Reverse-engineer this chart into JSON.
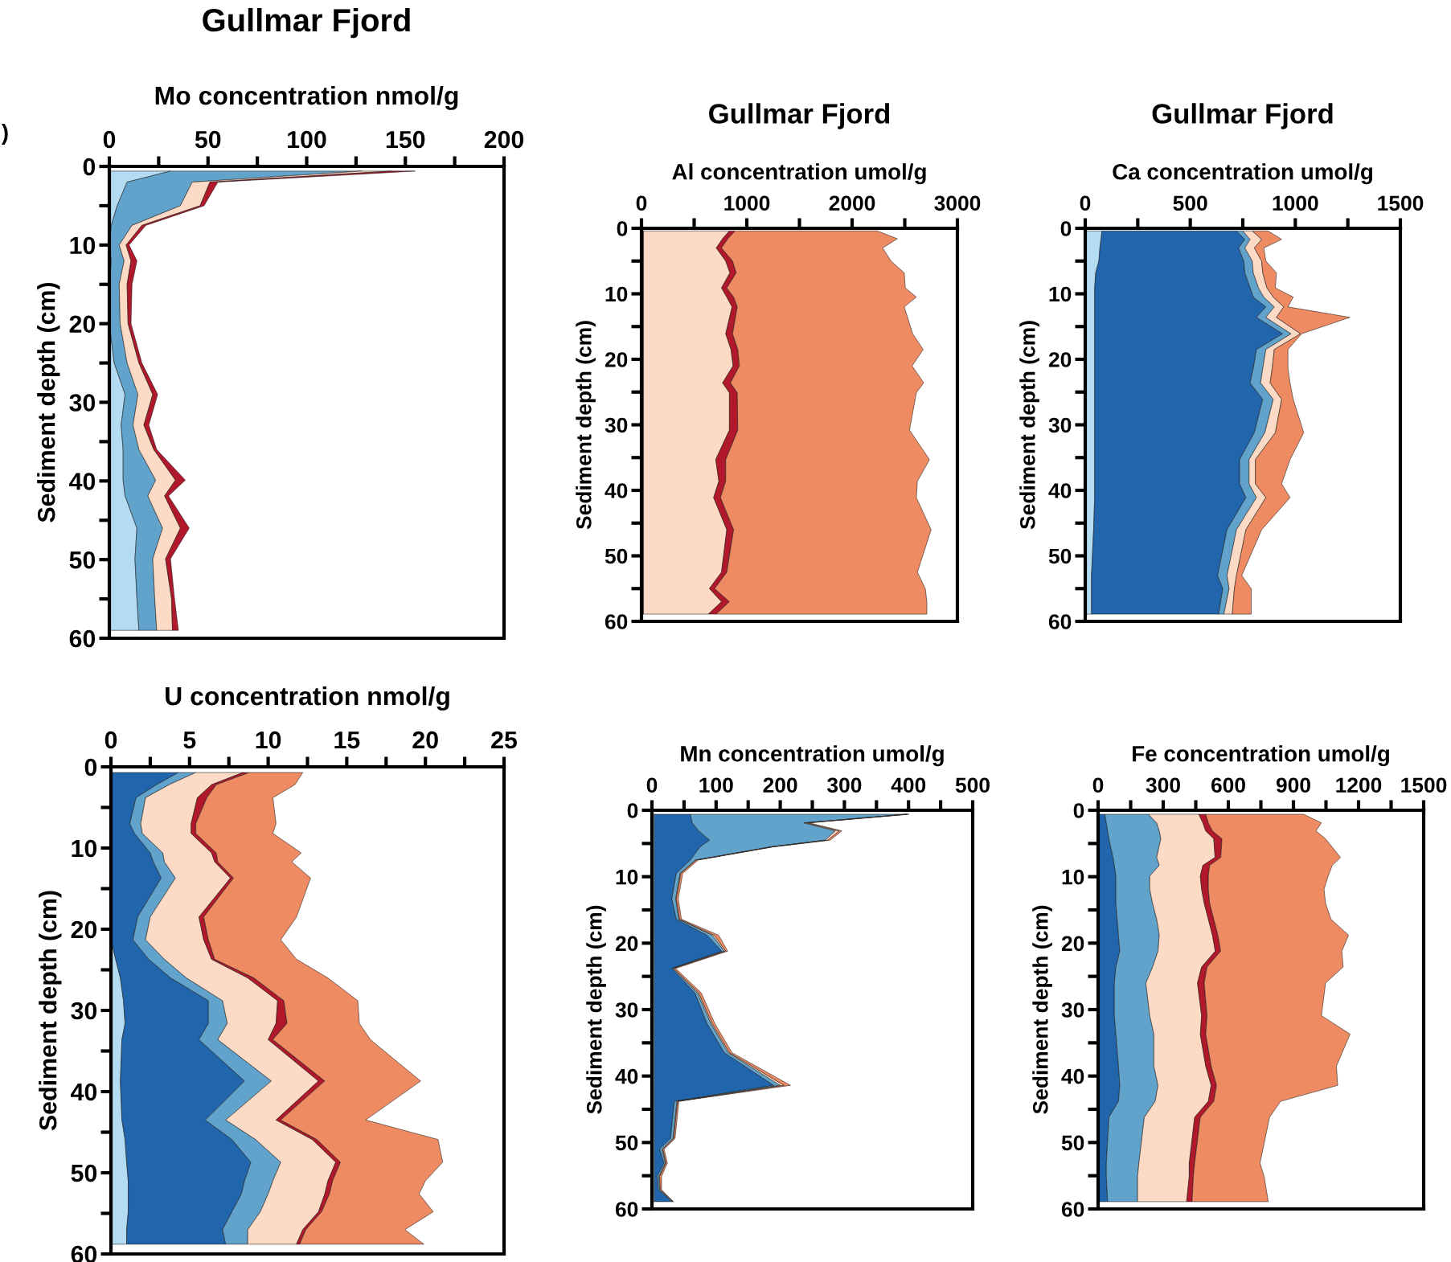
{
  "chart_data": [
    {
      "type": "area",
      "stacked": true,
      "orientation": "horizontal",
      "title": "Gullmar Fjord",
      "xlabel": "Mo concentration nmol/g",
      "ylabel": "Sediment depth (cm)",
      "annotations": [
        ")"
      ],
      "x": [
        0.6,
        2.0,
        5.0,
        7.5,
        10.0,
        12.0,
        15.0,
        20.0,
        25.0,
        29.0,
        32.9,
        36.0,
        39.9,
        41.9,
        46.0,
        49.9,
        54.9,
        59.0
      ],
      "series": [
        {
          "color": "#b3dbf1",
          "values": [
            31,
            9,
            4,
            1,
            0,
            1,
            0,
            0,
            2.5,
            8,
            6,
            7,
            7,
            8,
            14,
            13,
            14,
            15
          ]
        },
        {
          "color": "#62a3cb",
          "values": [
            97,
            33,
            32,
            10.5,
            5,
            6.5,
            5,
            5.5,
            6.5,
            6.5,
            6,
            8,
            16.5,
            11.5,
            13,
            9,
            9,
            9
          ]
        },
        {
          "color": "#fddac6",
          "values": [
            15,
            9,
            10,
            5,
            3.5,
            3.5,
            4,
            4,
            6,
            7.5,
            5.5,
            7.5,
            10,
            8.5,
            9,
            6.5,
            8.5,
            8
          ]
        },
        {
          "color": "#b2182b",
          "values": [
            12,
            4,
            2,
            2,
            1.5,
            3,
            2.5,
            1.5,
            1.5,
            2.5,
            2.5,
            1.5,
            5,
            2,
            4.5,
            2.5,
            1.5,
            3
          ]
        }
      ],
      "xlim": [
        0,
        200
      ],
      "xticks": [
        0,
        {
          "value": 25,
          "label": null
        },
        50,
        {
          "value": 75,
          "label": null
        },
        100,
        {
          "value": 125,
          "label": null
        },
        150,
        {
          "value": 175,
          "label": null
        },
        200
      ],
      "ylim": [
        60,
        0
      ],
      "yticks": [
        0,
        {
          "value": 5,
          "label": null
        },
        10,
        {
          "value": 15,
          "label": null
        },
        20,
        {
          "value": 25,
          "label": null
        },
        30,
        {
          "value": 35,
          "label": null
        },
        40,
        {
          "value": 45,
          "label": null
        },
        50,
        {
          "value": 55,
          "label": null
        },
        60
      ]
    },
    {
      "type": "area",
      "stacked": true,
      "orientation": "horizontal",
      "title": "Gullmar Fjord",
      "xlabel": "Al concentration umol/g",
      "ylabel": "Sediment depth (cm)",
      "x": [
        0.4,
        1.6,
        3.0,
        5.0,
        6.8,
        9.1,
        10.5,
        12.0,
        16.1,
        18.5,
        21.0,
        23.6,
        25.1,
        30.8,
        35.3,
        38.6,
        41.1,
        46.0,
        52.5,
        55.0,
        57.0,
        58.9
      ],
      "series": [
        {
          "color": "#62a3cb",
          "values": [
            20,
            20,
            20,
            20,
            20,
            20,
            20,
            20,
            20,
            20,
            20,
            20,
            20,
            20,
            20,
            20,
            20,
            20,
            20,
            20,
            20,
            20
          ]
        },
        {
          "color": "#fddac6",
          "values": [
            815,
            750,
            690,
            780,
            820,
            740,
            790,
            840,
            780,
            830,
            850,
            750,
            815,
            815,
            685,
            715,
            665,
            790,
            740,
            625,
            740,
            615
          ]
        },
        {
          "color": "#b2182b",
          "values": [
            55,
            50,
            50,
            65,
            60,
            50,
            65,
            50,
            65,
            65,
            60,
            75,
            75,
            80,
            95,
            65,
            65,
            65,
            50,
            50,
            75,
            75
          ]
        },
        {
          "color": "#ef8b62",
          "values": [
            1350,
            1610,
            1530,
            1505,
            1595,
            1695,
            1735,
            1585,
            1710,
            1760,
            1640,
            1835,
            1700,
            1630,
            1935,
            1820,
            1860,
            1875,
            1810,
            2000,
            1875,
            2000
          ]
        }
      ],
      "xlim": [
        0,
        3000
      ],
      "xticks": [
        0,
        {
          "value": 500,
          "label": null
        },
        1000,
        {
          "value": 1500,
          "label": null
        },
        2000,
        {
          "value": 2500,
          "label": null
        },
        3000
      ],
      "ylim": [
        60,
        0
      ],
      "yticks": [
        0,
        {
          "value": 5,
          "label": null
        },
        10,
        {
          "value": 15,
          "label": null
        },
        20,
        {
          "value": 25,
          "label": null
        },
        30,
        {
          "value": 35,
          "label": null
        },
        40,
        {
          "value": 45,
          "label": null
        },
        50,
        {
          "value": 55,
          "label": null
        },
        60
      ]
    },
    {
      "type": "area",
      "stacked": true,
      "orientation": "horizontal",
      "title": "Gullmar Fjord",
      "xlabel": "Ca concentration umol/g",
      "ylabel": "Sediment depth (cm)",
      "x": [
        0.4,
        1.7,
        3.0,
        5.0,
        6.8,
        9.1,
        10.5,
        12.0,
        13.6,
        16.1,
        18.5,
        21.4,
        23.6,
        26.1,
        31.2,
        35.3,
        39.0,
        41.1,
        46.0,
        53.0,
        55.0,
        58.9
      ],
      "series": [
        {
          "color": "#b3dbf1",
          "values": [
            80,
            75,
            70,
            65,
            50,
            45,
            45,
            45,
            45,
            45,
            45,
            45,
            45,
            45,
            45,
            45,
            45,
            45,
            40,
            30,
            30,
            30
          ]
        },
        {
          "color": "#2166ac",
          "values": [
            640,
            685,
            660,
            690,
            710,
            740,
            755,
            815,
            770,
            895,
            770,
            755,
            740,
            800,
            760,
            690,
            690,
            720,
            635,
            600,
            625,
            605
          ]
        },
        {
          "color": "#62a3cb",
          "values": [
            30,
            25,
            30,
            40,
            40,
            40,
            50,
            40,
            45,
            40,
            45,
            45,
            50,
            50,
            50,
            45,
            45,
            50,
            45,
            45,
            30,
            25
          ]
        },
        {
          "color": "#fddac6",
          "values": [
            45,
            55,
            45,
            45,
            45,
            40,
            45,
            45,
            50,
            45,
            40,
            45,
            45,
            40,
            50,
            30,
            30,
            45,
            45,
            45,
            25,
            40
          ]
        },
        {
          "color": "#ef8b62",
          "values": [
            75,
            95,
            45,
            20,
            65,
            40,
            95,
            20,
            350,
            5,
            65,
            75,
            95,
            55,
            135,
            165,
            125,
            115,
            75,
            25,
            80,
            90
          ]
        }
      ],
      "xlim": [
        0,
        1500
      ],
      "xticks": [
        0,
        {
          "value": 250,
          "label": null
        },
        500,
        {
          "value": 750,
          "label": null
        },
        1000,
        {
          "value": 1250,
          "label": null
        },
        1500
      ],
      "ylim": [
        60,
        0
      ],
      "yticks": [
        0,
        {
          "value": 5,
          "label": null
        },
        10,
        {
          "value": 15,
          "label": null
        },
        20,
        {
          "value": 25,
          "label": null
        },
        30,
        {
          "value": 35,
          "label": null
        },
        40,
        {
          "value": 45,
          "label": null
        },
        50,
        {
          "value": 55,
          "label": null
        },
        60
      ]
    },
    {
      "type": "area",
      "stacked": true,
      "orientation": "horizontal",
      "xlabel": "U concentration nmol/g",
      "ylabel": "Sediment depth (cm)",
      "x": [
        0.7,
        2.2,
        3.8,
        7.0,
        8.2,
        10.6,
        11.7,
        13.7,
        18.5,
        21.3,
        23.7,
        26.0,
        28.8,
        31.6,
        33.6,
        38.7,
        43.5,
        45.9,
        48.7,
        51.0,
        52.6,
        54.8,
        57.0,
        58.8
      ],
      "series": [
        {
          "color": "#b3dbf1",
          "values": [
            0.1,
            0,
            0,
            0,
            0,
            0,
            0,
            0,
            0,
            0,
            0.3,
            0.6,
            0.8,
            0.9,
            0.7,
            0.6,
            0.7,
            0.9,
            1.0,
            1.1,
            1.1,
            1.1,
            1.0,
            1.0
          ]
        },
        {
          "color": "#2166ac",
          "values": [
            4.2,
            2.9,
            1.6,
            1.2,
            1.5,
            2.5,
            2.7,
            3.2,
            1.7,
            1.4,
            2.1,
            3.2,
            5.4,
            5.3,
            4.9,
            7.9,
            5.3,
            6.8,
            7.9,
            7.4,
            7.2,
            6.6,
            6.1,
            6.3
          ]
        },
        {
          "color": "#62a3cb",
          "values": [
            1.1,
            0.8,
            0.6,
            0.7,
            0.5,
            0.8,
            0.7,
            0.9,
            0.8,
            0.8,
            1.0,
            1.0,
            0.9,
            1.2,
            1.2,
            1.7,
            1.3,
            1.5,
            1.9,
            1.8,
            1.7,
            1.8,
            1.6,
            1.4
          ]
        },
        {
          "color": "#fddac6",
          "values": [
            3.0,
            2.7,
            3.3,
            3.2,
            3.1,
            3.1,
            3.2,
            3.5,
            3.1,
            3.7,
            3.0,
            3.9,
            3.5,
            3.1,
            3.2,
            3.0,
            3.2,
            3.6,
            3.5,
            3.5,
            3.6,
            3.7,
            3.5,
            3.1
          ]
        },
        {
          "color": "#b2182b",
          "values": [
            0.4,
            0.3,
            0.6,
            0.3,
            0.3,
            0.3,
            0.2,
            0.2,
            0.3,
            0.3,
            0.2,
            0.4,
            0.4,
            0.7,
            0.3,
            0.4,
            0.3,
            0.3,
            0.3,
            0.3,
            0.3,
            0.2,
            0.2,
            0.2
          ]
        },
        {
          "color": "#ef8b62",
          "values": [
            3.4,
            5.0,
            4.2,
            5.1,
            4.9,
            5.4,
            4.7,
            4.9,
            5.9,
            4.6,
            5.2,
            4.7,
            4.7,
            4.6,
            6.2,
            6.1,
            5.4,
            7.7,
            6.5,
            5.9,
            5.7,
            7.1,
            6.3,
            7.9
          ]
        }
      ],
      "xlim": [
        0,
        25
      ],
      "xticks": [
        0,
        {
          "value": 2.5,
          "label": null
        },
        5,
        {
          "value": 7.5,
          "label": null
        },
        10,
        {
          "value": 12.5,
          "label": null
        },
        15,
        {
          "value": 17.5,
          "label": null
        },
        20,
        {
          "value": 22.5,
          "label": null
        },
        25
      ],
      "ylim": [
        60,
        0
      ],
      "yticks": [
        0,
        {
          "value": 5,
          "label": null
        },
        10,
        {
          "value": 15,
          "label": null
        },
        20,
        {
          "value": 25,
          "label": null
        },
        30,
        {
          "value": 35,
          "label": null
        },
        40,
        {
          "value": 45,
          "label": null
        },
        50,
        {
          "value": 55,
          "label": null
        },
        60
      ]
    },
    {
      "type": "area",
      "stacked": true,
      "orientation": "horizontal",
      "xlabel": "Mn concentration umol/g",
      "ylabel": "Sediment depth (cm)",
      "x": [
        0.6,
        1.9,
        3.1,
        4.5,
        5.5,
        7.5,
        9.5,
        13.3,
        16.4,
        18.8,
        21.2,
        23.8,
        27.5,
        32.1,
        36.5,
        41.4,
        43.8,
        49.4,
        51.0,
        53.1,
        55.1,
        57.1,
        58.9
      ],
      "series": [
        {
          "color": "#b3dbf1",
          "values": [
            4,
            4,
            4,
            4,
            4,
            4,
            4,
            4,
            4,
            4,
            4,
            4,
            4,
            4,
            4,
            4,
            4,
            4,
            4,
            4,
            4,
            4,
            4
          ]
        },
        {
          "color": "#2166ac",
          "values": [
            56,
            59,
            69,
            86,
            71,
            56,
            34,
            27,
            34,
            82,
            105,
            27,
            63,
            82,
            109,
            186,
            31,
            25,
            8,
            15,
            4,
            6,
            27
          ]
        },
        {
          "color": "#62a3cb",
          "values": [
            337,
            174,
            213,
            180,
            111,
            8,
            6,
            6,
            4,
            8,
            4,
            2,
            4,
            6,
            6,
            10,
            4,
            4,
            4,
            2,
            3,
            2,
            2
          ]
        },
        {
          "color": "#fddac6",
          "values": [
            1,
            4,
            6,
            4,
            2,
            1,
            1,
            1,
            1,
            3,
            2,
            1,
            2,
            2,
            2,
            6,
            1,
            1,
            1,
            1,
            1,
            1,
            0
          ]
        },
        {
          "color": "#ef8b62",
          "values": [
            3,
            4,
            4,
            4,
            2,
            3,
            3,
            3,
            3,
            7,
            3,
            3,
            4,
            4,
            4,
            10,
            2,
            2,
            2,
            2,
            3,
            2,
            0
          ]
        }
      ],
      "xlim": [
        0,
        500
      ],
      "xticks": [
        0,
        {
          "value": 50,
          "label": null
        },
        100,
        {
          "value": 150,
          "label": null
        },
        200,
        {
          "value": 250,
          "label": null
        },
        300,
        {
          "value": 350,
          "label": null
        },
        400,
        {
          "value": 450,
          "label": null
        },
        500
      ],
      "ylim": [
        60,
        0
      ],
      "yticks": [
        0,
        {
          "value": 5,
          "label": null
        },
        10,
        {
          "value": 15,
          "label": null
        },
        20,
        {
          "value": 25,
          "label": null
        },
        30,
        {
          "value": 35,
          "label": null
        },
        40,
        {
          "value": 45,
          "label": null
        },
        50,
        {
          "value": 55,
          "label": null
        },
        60
      ]
    },
    {
      "type": "area",
      "stacked": true,
      "orientation": "horizontal",
      "xlabel": "Fe concentration umol/g",
      "ylabel": "Sediment depth (cm)",
      "x": [
        0.6,
        1.9,
        3.1,
        4.3,
        7.1,
        8.3,
        9.9,
        11.9,
        14.0,
        16.4,
        18.8,
        21.2,
        23.6,
        26.0,
        30.9,
        33.7,
        38.5,
        41.4,
        43.8,
        46.2,
        53.1,
        55.1,
        58.9
      ],
      "series": [
        {
          "color": "#2166ac",
          "values": [
            31,
            38,
            44,
            50,
            69,
            75,
            82,
            82,
            82,
            88,
            94,
            100,
            82,
            75,
            75,
            82,
            94,
            100,
            94,
            50,
            38,
            38,
            44
          ]
        },
        {
          "color": "#62a3cb",
          "values": [
            201,
            232,
            238,
            239,
            201,
            207,
            156,
            156,
            169,
            182,
            188,
            176,
            169,
            145,
            163,
            175,
            163,
            176,
            169,
            163,
            150,
            144,
            138
          ]
        },
        {
          "color": "#fddac6",
          "values": [
            232,
            213,
            214,
            244,
            269,
            201,
            233,
            239,
            238,
            238,
            245,
            264,
            226,
            238,
            239,
            214,
            239,
            245,
            245,
            232,
            232,
            238,
            226
          ]
        },
        {
          "color": "#b2182b",
          "values": [
            32,
            25,
            31,
            38,
            26,
            31,
            37,
            31,
            25,
            25,
            25,
            25,
            25,
            31,
            25,
            25,
            25,
            25,
            25,
            26,
            25,
            19,
            25
          ]
        },
        {
          "color": "#ef8b62",
          "values": [
            451,
            521,
            477,
            477,
            552,
            565,
            552,
            533,
            534,
            540,
            602,
            558,
            627,
            559,
            527,
            665,
            577,
            558,
            308,
            319,
            301,
            326,
            351
          ]
        }
      ],
      "xlim": [
        0,
        1500
      ],
      "xticks": [
        0,
        {
          "value": 150,
          "label": null
        },
        300,
        {
          "value": 450,
          "label": null
        },
        600,
        {
          "value": 750,
          "label": null
        },
        900,
        {
          "value": 1050,
          "label": null
        },
        1200,
        {
          "value": 1350,
          "label": null
        },
        1500
      ],
      "ylim": [
        60,
        0
      ],
      "yticks": [
        0,
        {
          "value": 5,
          "label": null
        },
        10,
        {
          "value": 15,
          "label": null
        },
        20,
        {
          "value": 25,
          "label": null
        },
        30,
        {
          "value": 35,
          "label": null
        },
        40,
        {
          "value": 45,
          "label": null
        },
        50,
        {
          "value": 55,
          "label": null
        },
        60
      ]
    }
  ]
}
